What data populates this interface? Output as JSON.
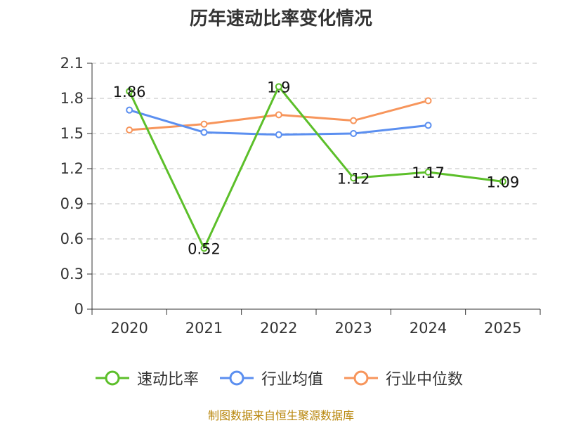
{
  "chart_data": {
    "type": "line",
    "title": "历年速动比率变化情况",
    "categories": [
      "2020",
      "2021",
      "2022",
      "2023",
      "2024",
      "2025"
    ],
    "ylim": [
      0,
      2.1
    ],
    "yticks": [
      "0",
      "0.3",
      "0.6",
      "0.9",
      "1.2",
      "1.5",
      "1.8",
      "2.1"
    ],
    "xlabel": "",
    "ylabel": "",
    "grid": "horizontal-dashed",
    "legend_position": "bottom",
    "series": [
      {
        "name": "速动比率",
        "color": "#5cbf2a",
        "values": [
          1.86,
          0.52,
          1.9,
          1.12,
          1.17,
          1.09
        ],
        "labels": [
          "1.86",
          "0.52",
          "1.9",
          "1.12",
          "1.17",
          "1.09"
        ]
      },
      {
        "name": "行业均值",
        "color": "#5b8ff0",
        "values": [
          1.7,
          1.51,
          1.49,
          1.5,
          1.57,
          null
        ]
      },
      {
        "name": "行业中位数",
        "color": "#f7955b",
        "values": [
          1.53,
          1.58,
          1.66,
          1.61,
          1.78,
          null
        ]
      }
    ]
  },
  "footer": {
    "source": "制图数据来自恒生聚源数据库"
  }
}
